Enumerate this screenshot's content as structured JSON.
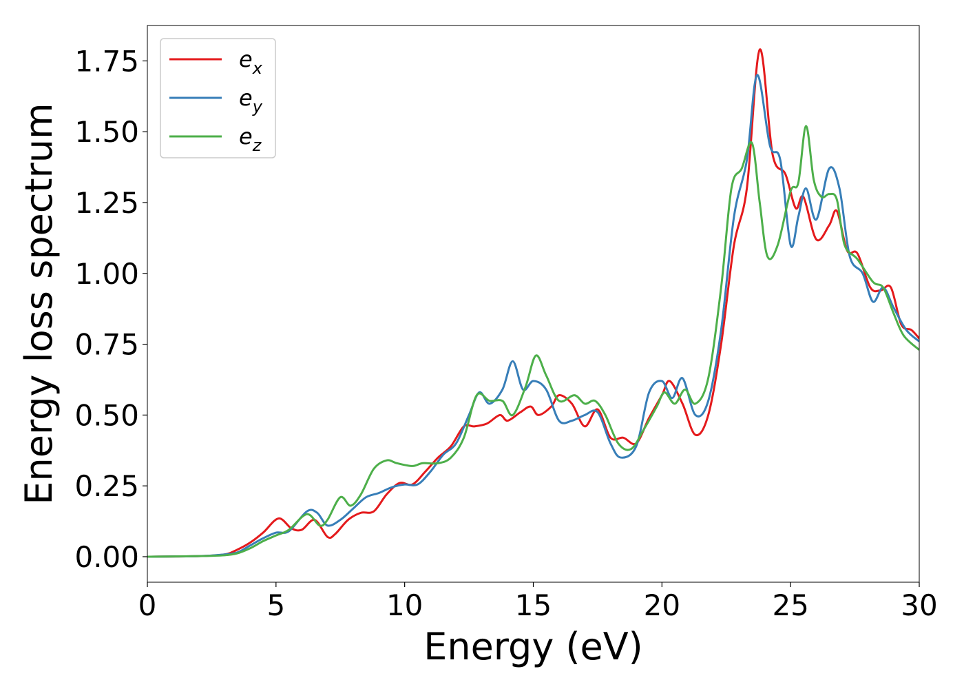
{
  "chart_data": {
    "type": "line",
    "title": "",
    "xlabel": "Energy (eV)",
    "ylabel": "Energy loss spectrum",
    "xlim": [
      0,
      30
    ],
    "ylim": [
      -0.09,
      1.875
    ],
    "x_ticks": [
      0,
      5,
      10,
      15,
      20,
      25,
      30
    ],
    "x_tick_labels": [
      "0",
      "5",
      "10",
      "15",
      "20",
      "25",
      "30"
    ],
    "y_ticks": [
      0,
      0.25,
      0.5,
      0.75,
      1.0,
      1.25,
      1.5,
      1.75
    ],
    "y_tick_labels": [
      "0.00",
      "0.25",
      "0.50",
      "0.75",
      "1.00",
      "1.25",
      "1.50",
      "1.75"
    ],
    "grid": false,
    "legend_position": "top-left",
    "series": [
      {
        "name": "e",
        "subscript": "x",
        "color": "#e41a1c",
        "points": [
          [
            0,
            0
          ],
          [
            2,
            0.002
          ],
          [
            3,
            0.008
          ],
          [
            3.5,
            0.025
          ],
          [
            4,
            0.05
          ],
          [
            4.5,
            0.085
          ],
          [
            5.1,
            0.135
          ],
          [
            5.6,
            0.1
          ],
          [
            6,
            0.095
          ],
          [
            6.5,
            0.13
          ],
          [
            7,
            0.07
          ],
          [
            7.3,
            0.08
          ],
          [
            7.8,
            0.13
          ],
          [
            8.3,
            0.155
          ],
          [
            8.8,
            0.16
          ],
          [
            9.3,
            0.22
          ],
          [
            9.8,
            0.26
          ],
          [
            10.3,
            0.255
          ],
          [
            10.8,
            0.3
          ],
          [
            11.3,
            0.35
          ],
          [
            11.8,
            0.39
          ],
          [
            12.3,
            0.46
          ],
          [
            12.7,
            0.46
          ],
          [
            13.2,
            0.47
          ],
          [
            13.7,
            0.5
          ],
          [
            14,
            0.48
          ],
          [
            14.5,
            0.51
          ],
          [
            14.9,
            0.53
          ],
          [
            15.2,
            0.5
          ],
          [
            15.7,
            0.53
          ],
          [
            16,
            0.57
          ],
          [
            16.5,
            0.54
          ],
          [
            17,
            0.46
          ],
          [
            17.5,
            0.52
          ],
          [
            18,
            0.42
          ],
          [
            18.5,
            0.42
          ],
          [
            19,
            0.4
          ],
          [
            19.5,
            0.49
          ],
          [
            20,
            0.57
          ],
          [
            20.3,
            0.62
          ],
          [
            20.8,
            0.54
          ],
          [
            21.3,
            0.43
          ],
          [
            21.8,
            0.5
          ],
          [
            22.3,
            0.75
          ],
          [
            22.8,
            1.1
          ],
          [
            23.3,
            1.3
          ],
          [
            23.8,
            1.79
          ],
          [
            24.3,
            1.42
          ],
          [
            24.8,
            1.35
          ],
          [
            25.2,
            1.23
          ],
          [
            25.5,
            1.27
          ],
          [
            26,
            1.12
          ],
          [
            26.5,
            1.17
          ],
          [
            26.8,
            1.22
          ],
          [
            27.2,
            1.08
          ],
          [
            27.6,
            1.07
          ],
          [
            28.1,
            0.95
          ],
          [
            28.5,
            0.94
          ],
          [
            28.9,
            0.95
          ],
          [
            29.3,
            0.82
          ],
          [
            29.7,
            0.8
          ],
          [
            30,
            0.77
          ]
        ]
      },
      {
        "name": "e",
        "subscript": "y",
        "color": "#377eb8",
        "points": [
          [
            0,
            0
          ],
          [
            2,
            0.002
          ],
          [
            3,
            0.008
          ],
          [
            3.5,
            0.015
          ],
          [
            4,
            0.04
          ],
          [
            4.5,
            0.065
          ],
          [
            5,
            0.085
          ],
          [
            5.5,
            0.09
          ],
          [
            6.2,
            0.16
          ],
          [
            6.6,
            0.155
          ],
          [
            7,
            0.11
          ],
          [
            7.5,
            0.13
          ],
          [
            8,
            0.17
          ],
          [
            8.5,
            0.21
          ],
          [
            9,
            0.225
          ],
          [
            9.5,
            0.245
          ],
          [
            10,
            0.255
          ],
          [
            10.5,
            0.255
          ],
          [
            11,
            0.3
          ],
          [
            11.5,
            0.36
          ],
          [
            12,
            0.4
          ],
          [
            12.5,
            0.5
          ],
          [
            12.9,
            0.58
          ],
          [
            13.3,
            0.54
          ],
          [
            13.8,
            0.59
          ],
          [
            14.2,
            0.69
          ],
          [
            14.6,
            0.59
          ],
          [
            15,
            0.62
          ],
          [
            15.5,
            0.59
          ],
          [
            16,
            0.48
          ],
          [
            16.5,
            0.48
          ],
          [
            17,
            0.5
          ],
          [
            17.5,
            0.51
          ],
          [
            18,
            0.4
          ],
          [
            18.4,
            0.35
          ],
          [
            19,
            0.39
          ],
          [
            19.5,
            0.58
          ],
          [
            20,
            0.62
          ],
          [
            20.4,
            0.56
          ],
          [
            20.8,
            0.63
          ],
          [
            21.3,
            0.5
          ],
          [
            21.8,
            0.55
          ],
          [
            22.3,
            0.8
          ],
          [
            22.8,
            1.2
          ],
          [
            23.3,
            1.4
          ],
          [
            23.7,
            1.7
          ],
          [
            24.2,
            1.45
          ],
          [
            24.6,
            1.4
          ],
          [
            25,
            1.1
          ],
          [
            25.3,
            1.2
          ],
          [
            25.6,
            1.3
          ],
          [
            26,
            1.19
          ],
          [
            26.5,
            1.37
          ],
          [
            26.9,
            1.3
          ],
          [
            27.3,
            1.06
          ],
          [
            27.8,
            1.0
          ],
          [
            28.2,
            0.9
          ],
          [
            28.6,
            0.95
          ],
          [
            29,
            0.88
          ],
          [
            29.5,
            0.8
          ],
          [
            30,
            0.76
          ]
        ]
      },
      {
        "name": "e",
        "subscript": "z",
        "color": "#4daf4a",
        "points": [
          [
            0,
            0
          ],
          [
            2,
            0.002
          ],
          [
            3,
            0.005
          ],
          [
            3.5,
            0.012
          ],
          [
            4,
            0.03
          ],
          [
            4.5,
            0.055
          ],
          [
            5,
            0.075
          ],
          [
            5.5,
            0.095
          ],
          [
            6.2,
            0.15
          ],
          [
            6.7,
            0.11
          ],
          [
            7,
            0.13
          ],
          [
            7.5,
            0.21
          ],
          [
            7.9,
            0.18
          ],
          [
            8.3,
            0.22
          ],
          [
            8.8,
            0.31
          ],
          [
            9.3,
            0.34
          ],
          [
            9.7,
            0.33
          ],
          [
            10.3,
            0.32
          ],
          [
            10.7,
            0.33
          ],
          [
            11.3,
            0.33
          ],
          [
            11.8,
            0.35
          ],
          [
            12.3,
            0.42
          ],
          [
            12.8,
            0.57
          ],
          [
            13.3,
            0.55
          ],
          [
            13.8,
            0.55
          ],
          [
            14.2,
            0.5
          ],
          [
            14.7,
            0.6
          ],
          [
            15.1,
            0.71
          ],
          [
            15.5,
            0.64
          ],
          [
            16,
            0.55
          ],
          [
            16.6,
            0.57
          ],
          [
            17,
            0.54
          ],
          [
            17.4,
            0.55
          ],
          [
            17.8,
            0.5
          ],
          [
            18.3,
            0.4
          ],
          [
            18.8,
            0.38
          ],
          [
            19.3,
            0.45
          ],
          [
            19.8,
            0.53
          ],
          [
            20.1,
            0.58
          ],
          [
            20.5,
            0.54
          ],
          [
            20.9,
            0.59
          ],
          [
            21.3,
            0.54
          ],
          [
            21.8,
            0.63
          ],
          [
            22.3,
            0.95
          ],
          [
            22.7,
            1.3
          ],
          [
            23.1,
            1.37
          ],
          [
            23.5,
            1.46
          ],
          [
            23.8,
            1.25
          ],
          [
            24.1,
            1.06
          ],
          [
            24.5,
            1.1
          ],
          [
            25,
            1.29
          ],
          [
            25.3,
            1.32
          ],
          [
            25.6,
            1.52
          ],
          [
            25.9,
            1.33
          ],
          [
            26.2,
            1.27
          ],
          [
            26.5,
            1.28
          ],
          [
            26.8,
            1.26
          ],
          [
            27.1,
            1.1
          ],
          [
            27.6,
            1.05
          ],
          [
            28.2,
            0.97
          ],
          [
            28.6,
            0.95
          ],
          [
            29,
            0.86
          ],
          [
            29.4,
            0.78
          ],
          [
            30,
            0.73
          ]
        ]
      }
    ]
  }
}
